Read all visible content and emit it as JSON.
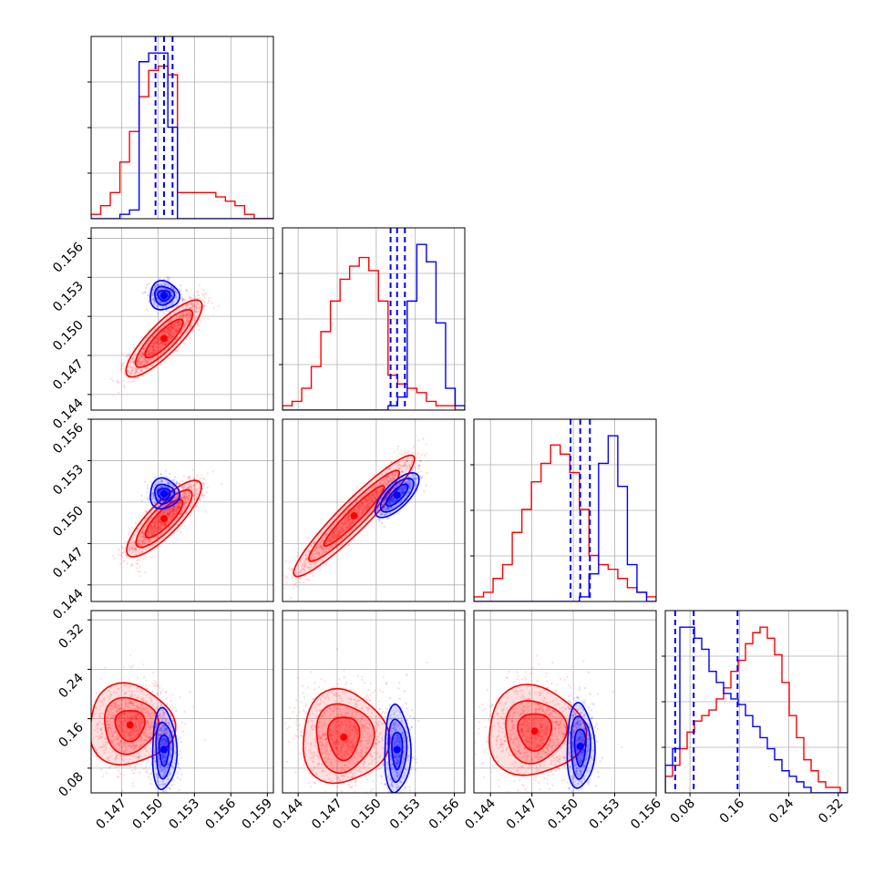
{
  "chart_data": {
    "type": "corner",
    "series_colors": [
      "#ff0000",
      "#0000ff"
    ],
    "grid": true,
    "title": "",
    "variables": [
      {
        "lim": [
          0.1445,
          0.1595
        ],
        "ticks": [
          0.147,
          0.15,
          0.153,
          0.156,
          0.159
        ],
        "tick_labels": [
          "0.147",
          "0.150",
          "0.153",
          "0.156",
          "0.159"
        ]
      },
      {
        "lim": [
          0.1428,
          0.1568
        ],
        "ticks": [
          0.144,
          0.147,
          0.15,
          0.153,
          0.156
        ],
        "tick_labels": [
          "0.144",
          "0.147",
          "0.150",
          "0.153",
          "0.156"
        ]
      },
      {
        "lim": [
          0.1428,
          0.156
        ],
        "ticks": [
          0.144,
          0.147,
          0.15,
          0.153,
          0.156
        ],
        "tick_labels": [
          "0.144",
          "0.147",
          "0.150",
          "0.153",
          "0.156"
        ]
      },
      {
        "lim": [
          0.04,
          0.335
        ],
        "ticks": [
          0.08,
          0.16,
          0.24,
          0.32
        ],
        "tick_labels": [
          "0.08",
          "0.16",
          "0.24",
          "0.32"
        ]
      }
    ],
    "histograms": [
      {
        "series": [
          {
            "color": "#ff0000",
            "start": 0.1445,
            "end": 0.1595,
            "counts": [
              1,
              3,
              6,
              13,
              20,
              28,
              34,
              35,
              33,
              6,
              6,
              6,
              6,
              5,
              4,
              3,
              1,
              0,
              0
            ]
          },
          {
            "color": "#0000ff",
            "start": 0.1445,
            "end": 0.1595,
            "counts": [
              0,
              0,
              0,
              1,
              2,
              36,
              38,
              38,
              21,
              0,
              0,
              0,
              0,
              0,
              0,
              0,
              0,
              0,
              0
            ]
          }
        ],
        "quantiles": [
          0.1498,
          0.1505,
          0.1512
        ]
      },
      {
        "series": [
          {
            "color": "#ff0000",
            "start": 0.1428,
            "end": 0.1568,
            "counts": [
              1,
              2,
              5,
              10,
              18,
              25,
              30,
              33,
              35,
              32,
              25,
              8,
              6,
              5,
              4,
              2,
              1,
              1,
              0
            ]
          },
          {
            "color": "#0000ff",
            "start": 0.1428,
            "end": 0.1568,
            "counts": [
              0,
              0,
              0,
              0,
              0,
              0,
              0,
              0,
              0,
              0,
              0,
              1,
              3,
              25,
              38,
              34,
              20,
              5,
              1
            ]
          }
        ],
        "quantiles": [
          0.1511,
          0.1516,
          0.1522
        ]
      },
      {
        "series": [
          {
            "color": "#ff0000",
            "start": 0.1428,
            "end": 0.156,
            "counts": [
              1,
              2,
              5,
              8,
              15,
              20,
              26,
              30,
              34,
              32,
              28,
              20,
              10,
              8,
              7,
              5,
              3,
              2,
              1
            ]
          },
          {
            "color": "#0000ff",
            "start": 0.1428,
            "end": 0.156,
            "counts": [
              0,
              0,
              0,
              0,
              0,
              0,
              0,
              0,
              0,
              0,
              0,
              1,
              6,
              30,
              36,
              25,
              8,
              2,
              0
            ]
          }
        ],
        "quantiles": [
          0.1498,
          0.1505,
          0.1512
        ]
      },
      {
        "series": [
          {
            "color": "#ff0000",
            "start": 0.04,
            "end": 0.335,
            "counts": [
              3,
              5,
              8,
              11,
              13,
              14,
              15,
              17,
              19,
              22,
              24,
              27,
              29,
              30,
              28,
              25,
              20,
              14,
              10,
              6,
              4,
              2,
              1,
              1,
              0
            ]
          },
          {
            "color": "#0000ff",
            "start": 0.04,
            "end": 0.335,
            "counts": [
              5,
              8,
              30,
              30,
              28,
              26,
              22,
              20,
              18,
              17,
              16,
              14,
              12,
              10,
              8,
              6,
              4,
              3,
              2,
              1,
              0,
              0,
              0,
              0,
              0
            ]
          }
        ],
        "quantiles": [
          0.056,
          0.086,
          0.157
        ]
      }
    ],
    "pairs": [
      {
        "row": 1,
        "col": 0,
        "red": {
          "kind": "line",
          "a": 0.1445,
          "b": 0.1428,
          "c": 0.1595,
          "d": 0.1568,
          "center": [
            0.1505,
            0.1483
          ],
          "halfLen": 0.0023,
          "width": [
            0.0006,
            0.0009,
            0.0012
          ]
        },
        "blue": {
          "kind": "blob",
          "center": [
            0.1505,
            0.1516
          ],
          "rx": [
            0.0005,
            0.0008,
            0.0012
          ],
          "ry": [
            0.0004,
            0.0007,
            0.0011
          ],
          "tilt": 0.3
        }
      },
      {
        "row": 2,
        "col": 0,
        "red": {
          "kind": "line",
          "a": 0.1445,
          "b": 0.1428,
          "c": 0.1595,
          "d": 0.156,
          "center": [
            0.1505,
            0.1488
          ],
          "halfLen": 0.0022,
          "width": [
            0.0006,
            0.0009,
            0.0012
          ]
        },
        "blue": {
          "kind": "blob",
          "center": [
            0.1505,
            0.1506
          ],
          "rx": [
            0.0005,
            0.0008,
            0.0012
          ],
          "ry": [
            0.0004,
            0.0007,
            0.0011
          ],
          "tilt": 0.3
        }
      },
      {
        "row": 2,
        "col": 1,
        "red": {
          "kind": "line",
          "a": 0.1428,
          "b": 0.1428,
          "c": 0.1568,
          "d": 0.156,
          "center": [
            0.1483,
            0.149
          ],
          "halfLen": 0.0035,
          "width": [
            0.0005,
            0.0008,
            0.0011
          ]
        },
        "blue": {
          "kind": "line",
          "a": 0.1428,
          "b": 0.1428,
          "c": 0.1568,
          "d": 0.156,
          "center": [
            0.1516,
            0.1505
          ],
          "halfLen": 0.0012,
          "width": [
            0.0004,
            0.0007,
            0.0009
          ]
        }
      },
      {
        "row": 3,
        "col": 0,
        "red": {
          "kind": "blob",
          "center": [
            0.1477,
            0.15
          ],
          "rx": [
            0.0012,
            0.0022,
            0.0035
          ],
          "ry": [
            0.025,
            0.045,
            0.065
          ],
          "tilt": 0
        },
        "blue": {
          "kind": "blob",
          "center": [
            0.1505,
            0.11
          ],
          "rx": [
            0.0004,
            0.0007,
            0.001
          ],
          "ry": [
            0.025,
            0.045,
            0.065
          ],
          "tilt": 0
        }
      },
      {
        "row": 3,
        "col": 1,
        "red": {
          "kind": "blob",
          "center": [
            0.1475,
            0.13
          ],
          "rx": [
            0.0012,
            0.0022,
            0.0033
          ],
          "ry": [
            0.035,
            0.055,
            0.075
          ],
          "tilt": 0
        },
        "blue": {
          "kind": "blob",
          "center": [
            0.1516,
            0.11
          ],
          "rx": [
            0.0004,
            0.0007,
            0.001
          ],
          "ry": [
            0.03,
            0.05,
            0.07
          ],
          "tilt": 0
        }
      },
      {
        "row": 3,
        "col": 2,
        "red": {
          "kind": "blob",
          "center": [
            0.1472,
            0.14
          ],
          "rx": [
            0.0012,
            0.0022,
            0.0035
          ],
          "ry": [
            0.03,
            0.05,
            0.072
          ],
          "tilt": 0
        },
        "blue": {
          "kind": "blob",
          "center": [
            0.1505,
            0.115
          ],
          "rx": [
            0.0004,
            0.0007,
            0.001
          ],
          "ry": [
            0.03,
            0.05,
            0.068
          ],
          "tilt": 0
        }
      }
    ]
  }
}
